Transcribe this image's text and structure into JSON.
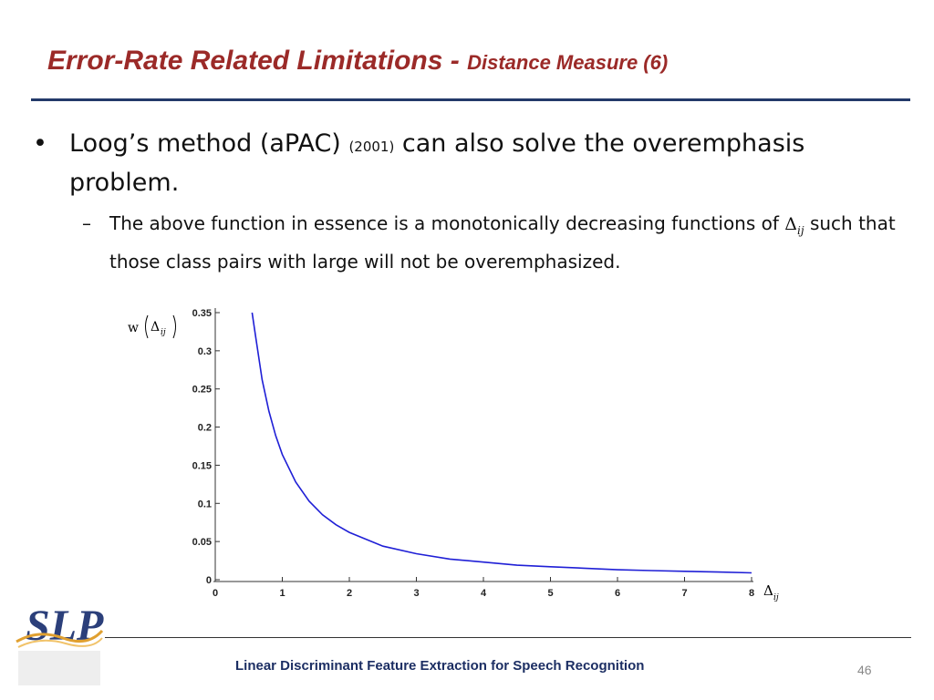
{
  "slide": {
    "title_main": "Error-Rate Related Limitations -",
    "title_sub": "Distance Measure (6)",
    "bullet1_bullet": "•",
    "bullet1_pre": "Loog’s method (aPAC)",
    "bullet1_year": "(2001)",
    "bullet1_post": "can also solve the overemphasis problem.",
    "bullet2_dash": "–",
    "bullet2_pre": "The above function in essence is a monotonically decreasing functions of",
    "bullet2_post": "such that those class pairs with large will not be overemphasized.",
    "delta_symbol": "Δ",
    "delta_subscript": "ij",
    "footer": "Linear Discriminant Feature Extraction for Speech Recognition",
    "page_number": "46",
    "logo_text": "SLP"
  },
  "chart_data": {
    "type": "line",
    "ylabel_prefix": "w",
    "xlabel": "Δij",
    "xlim": [
      0,
      8
    ],
    "ylim": [
      0,
      0.35
    ],
    "xticks": [
      "0",
      "1",
      "2",
      "3",
      "4",
      "5",
      "6",
      "7",
      "8"
    ],
    "yticks": [
      "0",
      "0.05",
      "0.1",
      "0.15",
      "0.2",
      "0.25",
      "0.3",
      "0.35"
    ],
    "line_color": "#1f1fd6",
    "series": [
      {
        "x": [
          0.55,
          0.6,
          0.7,
          0.8,
          0.9,
          1.0,
          1.2,
          1.4,
          1.6,
          1.8,
          2.0,
          2.5,
          3.0,
          3.5,
          4.0,
          4.5,
          5.0,
          5.5,
          6.0,
          6.5,
          7.0,
          7.5,
          8.0
        ],
        "y": [
          0.35,
          0.32,
          0.262,
          0.221,
          0.189,
          0.164,
          0.128,
          0.103,
          0.085,
          0.072,
          0.062,
          0.044,
          0.034,
          0.027,
          0.023,
          0.019,
          0.017,
          0.015,
          0.013,
          0.012,
          0.011,
          0.01,
          0.009
        ]
      }
    ]
  }
}
